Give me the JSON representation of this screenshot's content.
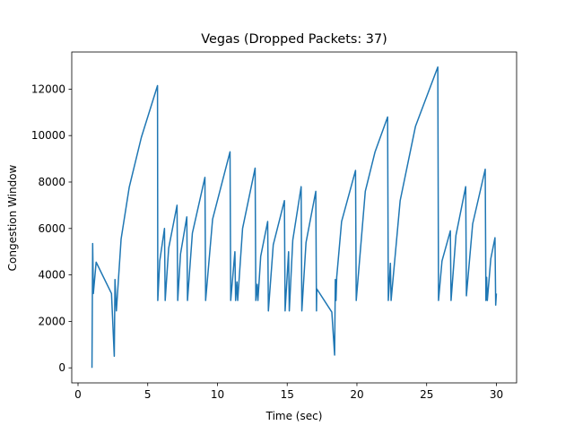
{
  "chart_data": {
    "type": "line",
    "title": "Vegas (Dropped Packets: 37)",
    "xlabel": "Time (sec)",
    "ylabel": "Congestion Window",
    "x": [
      1.0,
      1.05,
      1.1,
      1.3,
      2.4,
      2.6,
      2.65,
      2.75,
      3.09,
      3.67,
      4.54,
      5.7,
      5.72,
      5.86,
      6.2,
      6.25,
      6.5,
      7.1,
      7.15,
      7.35,
      7.8,
      7.85,
      8.2,
      9.1,
      9.15,
      9.65,
      10.9,
      10.95,
      11.25,
      11.3,
      11.4,
      11.45,
      11.8,
      12.7,
      12.75,
      12.85,
      12.9,
      13.1,
      13.6,
      13.65,
      14.0,
      14.8,
      14.85,
      15.1,
      15.15,
      15.4,
      16.0,
      16.05,
      16.35,
      17.05,
      17.1,
      17.12,
      18.2,
      18.4,
      18.45,
      18.5,
      18.55,
      18.9,
      19.9,
      19.95,
      20.6,
      21.3,
      22.2,
      22.25,
      22.4,
      22.45,
      23.1,
      24.2,
      25.8,
      25.85,
      26.1,
      26.7,
      26.75,
      27.1,
      27.8,
      27.85,
      28.3,
      29.2,
      29.25,
      29.3,
      29.35,
      29.6,
      29.9,
      29.95,
      30.0
    ],
    "values": [
      0,
      5350,
      3200,
      4550,
      3200,
      500,
      3800,
      2450,
      5550,
      7770,
      9920,
      12150,
      2900,
      4600,
      6000,
      2900,
      5150,
      7000,
      2900,
      4900,
      6500,
      2900,
      5800,
      8200,
      2900,
      6400,
      9300,
      2900,
      5000,
      2900,
      3700,
      2900,
      6000,
      8600,
      2900,
      3600,
      2900,
      4800,
      6300,
      2450,
      5300,
      7200,
      2450,
      5000,
      2450,
      5500,
      7800,
      2450,
      5400,
      7600,
      2450,
      3400,
      2400,
      550,
      3800,
      2900,
      3900,
      6300,
      8500,
      2900,
      7600,
      9300,
      10800,
      2900,
      4500,
      2900,
      7200,
      10400,
      12950,
      2900,
      4600,
      5900,
      2900,
      5700,
      7800,
      3100,
      6200,
      8550,
      2900,
      3900,
      2900,
      4700,
      5600,
      2700,
      3200
    ],
    "color": "#1f77b4",
    "xlim": [
      -0.45,
      31.45
    ],
    "xticks": [
      0,
      5,
      10,
      15,
      20,
      25,
      30
    ],
    "ylim": [
      -647.5,
      13597.5
    ],
    "yticks": [
      0,
      2000,
      4000,
      6000,
      8000,
      10000,
      12000
    ]
  }
}
